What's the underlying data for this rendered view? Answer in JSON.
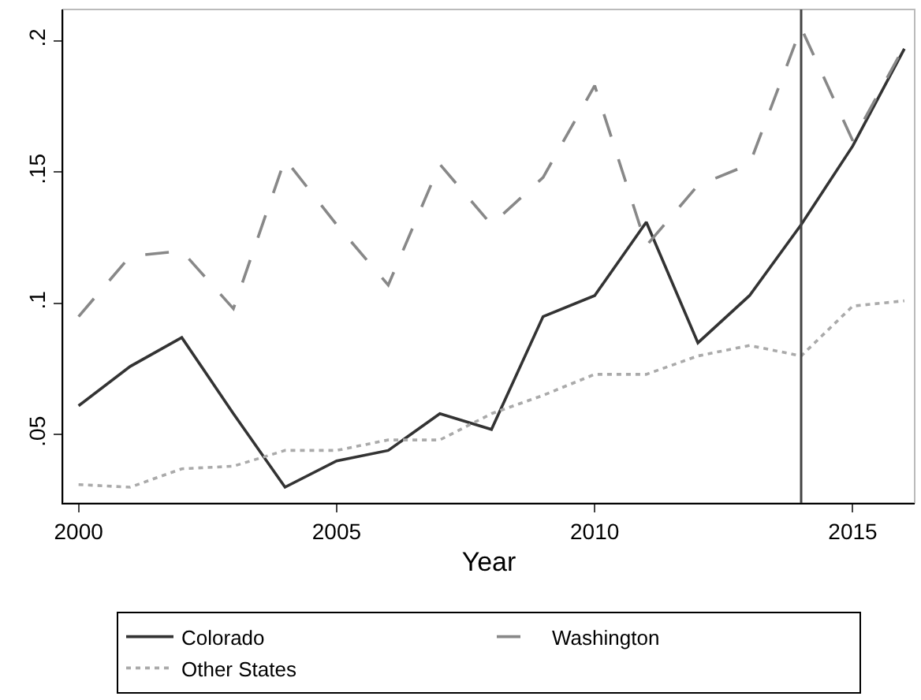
{
  "chart_data": {
    "type": "line",
    "xlabel": "Year",
    "x": [
      2000,
      2001,
      2002,
      2003,
      2004,
      2005,
      2006,
      2007,
      2008,
      2009,
      2010,
      2011,
      2012,
      2013,
      2014,
      2015,
      2016
    ],
    "series": [
      {
        "name": "Colorado",
        "color": "#333333",
        "line_style": "solid",
        "values": [
          0.061,
          0.076,
          0.087,
          0.058,
          0.03,
          0.04,
          0.044,
          0.058,
          0.052,
          0.095,
          0.103,
          0.131,
          0.085,
          0.103,
          0.13,
          0.16,
          0.197
        ]
      },
      {
        "name": "Washington",
        "color": "#888888",
        "line_style": "dashed",
        "values": [
          0.095,
          0.118,
          0.12,
          0.098,
          0.155,
          0.13,
          0.107,
          0.153,
          0.13,
          0.148,
          0.183,
          0.122,
          0.145,
          0.153,
          0.205,
          0.162,
          0.198
        ]
      },
      {
        "name": "Other States",
        "color": "#aaaaaa",
        "line_style": "dotted",
        "values": [
          0.031,
          0.03,
          0.037,
          0.038,
          0.044,
          0.044,
          0.048,
          0.048,
          0.058,
          0.065,
          0.073,
          0.073,
          0.08,
          0.084,
          0.08,
          0.099,
          0.101
        ]
      }
    ],
    "xlim": [
      1999.7,
      2016.2
    ],
    "xticks": [
      2000,
      2005,
      2010,
      2015
    ],
    "ylim": [
      0.024,
      0.212
    ],
    "yticks": [
      {
        "value": 0.05,
        "label": ".05"
      },
      {
        "value": 0.1,
        "label": ".1"
      },
      {
        "value": 0.15,
        "label": ".15"
      },
      {
        "value": 0.2,
        "label": ".2"
      }
    ],
    "ref_lines": [
      {
        "axis": "x",
        "value": 2014,
        "color": "#444444",
        "line_style": "solid"
      }
    ],
    "grid": false,
    "legend": "bottom",
    "marker": "none"
  }
}
